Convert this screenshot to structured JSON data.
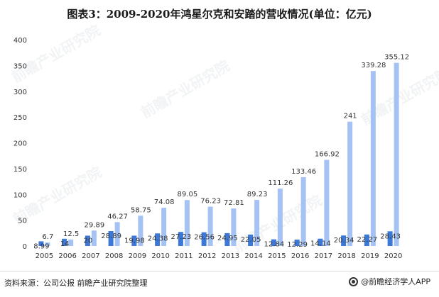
{
  "title": "图表3：2009-2020年鸿星尔克和安踏的营收情况(单位：亿元)",
  "footer": {
    "source": "资料来源：公司公报 前瞻产业研究院整理",
    "brand": "@前瞻经济学人APP"
  },
  "watermark": {
    "text": "前瞻产业研究院"
  },
  "colors": {
    "series1": "#3b78d8",
    "series2": "#a4c2f4"
  },
  "chart_data": {
    "type": "bar",
    "title": "图表3：2009-2020年鸿星尔克和安踏的营收情况(单位：亿元)",
    "xlabel": "",
    "ylabel": "",
    "ylim": [
      0,
      400
    ],
    "yticks": [
      0,
      50,
      100,
      150,
      200,
      250,
      300,
      350,
      400
    ],
    "grid": false,
    "legend": "none",
    "categories": [
      "2005",
      "2006",
      "2007",
      "2008",
      "2009",
      "2010",
      "2011",
      "2012",
      "2013",
      "2014",
      "2015",
      "2016",
      "2017",
      "2018",
      "2019",
      "2020"
    ],
    "series": [
      {
        "values": [
          8.99,
          14,
          20,
          28.89,
          19.98,
          24.38,
          27.23,
          26.56,
          24.95,
          22.05,
          12.84,
          12.29,
          14.14,
          20.34,
          22.27,
          28.43
        ],
        "labels": [
          "8.99",
          "14",
          "20",
          "28.89",
          "19.98",
          "24.38",
          "27.23",
          "26.56",
          "24.95",
          "22.05",
          "12.84",
          "12.29",
          "14.14",
          "20.34",
          "22.27",
          "28.43"
        ]
      },
      {
        "values": [
          6.7,
          12.5,
          29.89,
          46.27,
          58.75,
          74.08,
          89.05,
          76.23,
          72.81,
          89.23,
          111.26,
          133.46,
          166.92,
          241,
          339.28,
          355.12
        ],
        "labels": [
          "6.7",
          "12.5",
          "29.89",
          "46.27",
          "58.75",
          "74.08",
          "89.05",
          "76.23",
          "72.81",
          "89.23",
          "111.26",
          "133.46",
          "166.92",
          "241",
          "339.28",
          "355.12"
        ]
      }
    ]
  }
}
